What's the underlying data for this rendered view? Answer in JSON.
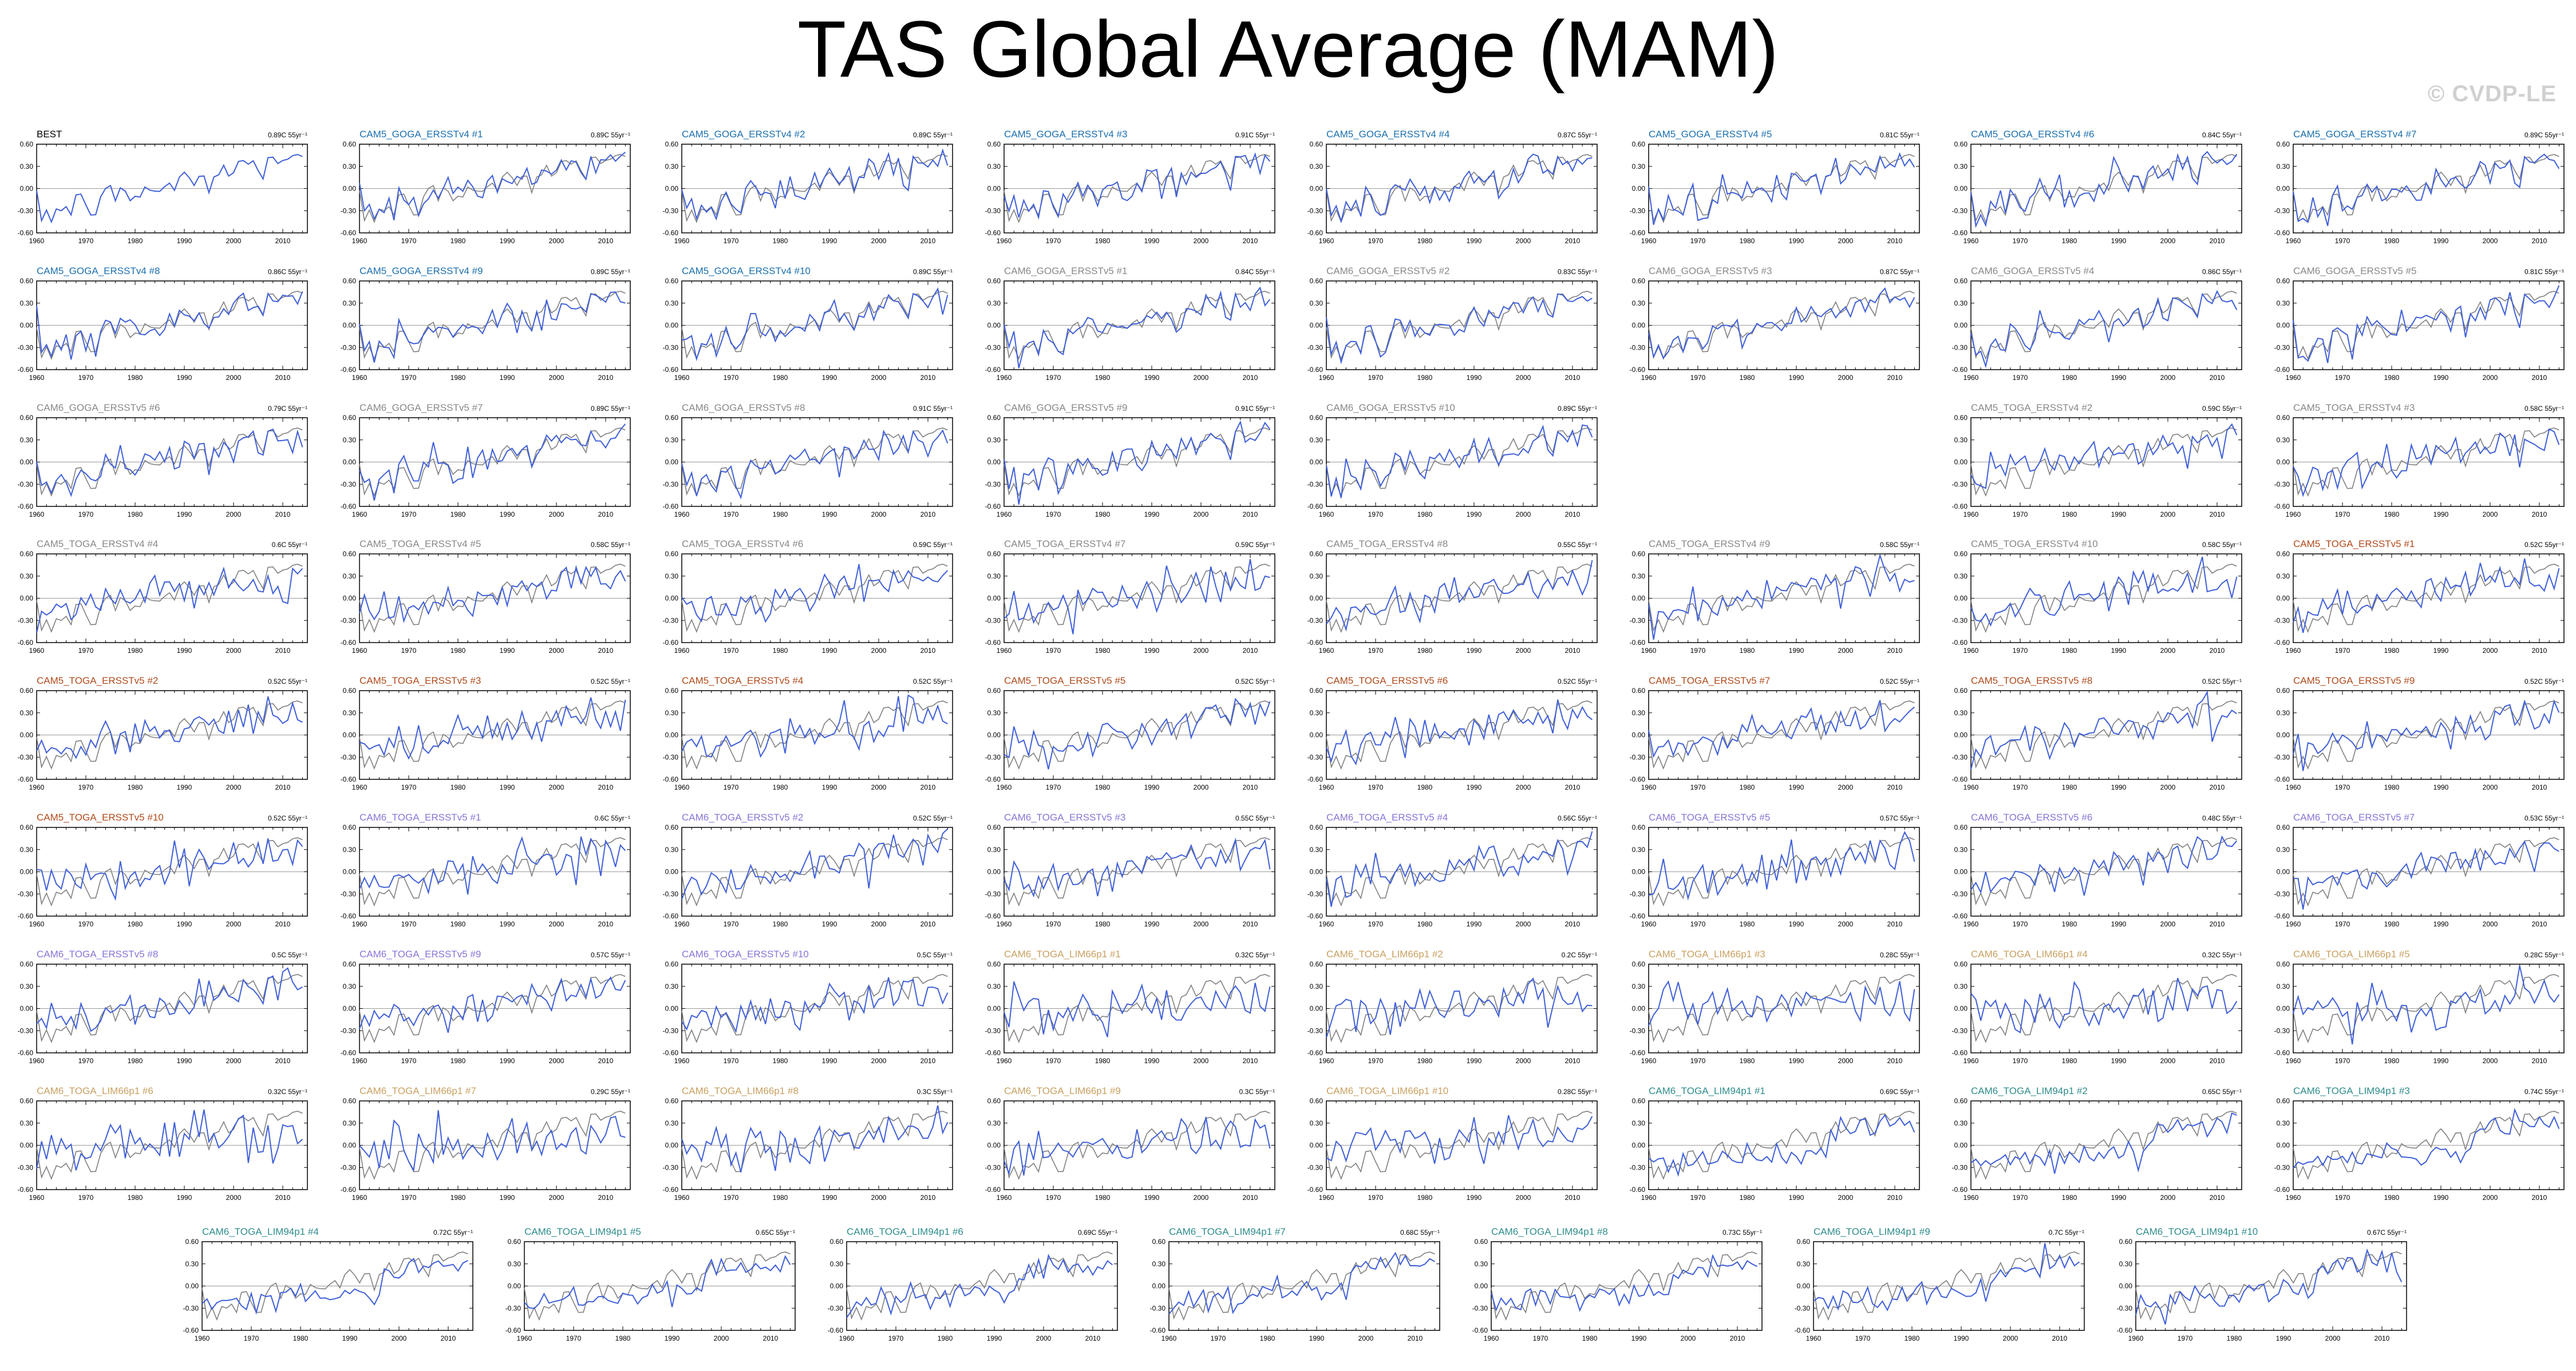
{
  "title": "TAS Global Average (MAM)",
  "watermark": "© CVDP-LE",
  "colors": {
    "obs_line": "#7f7f7f",
    "sim_line": "#3f5fd8",
    "zero_line": "#9a9a9a",
    "best": "#000000",
    "goga_v4": "#1a6fae",
    "goga_v5": "#556677",
    "cam6_goga_v5": "#888888",
    "toga_v4": "#888888",
    "cam5_toga_v5": "#b14a1a",
    "cam6_toga_v5": "#8a74d6",
    "lim66": "#c8a060",
    "lim94": "#2f8c8c"
  },
  "chart_data": {
    "type": "line",
    "layout": "small-multiples",
    "xlim": [
      1960,
      2015
    ],
    "ylim": [
      -0.6,
      0.6
    ],
    "x_ticks": [
      "1960",
      "1970",
      "1980",
      "1990",
      "2000",
      "2010"
    ],
    "y_ticks": [
      "0.60",
      "0.30",
      "0.00",
      "-0.30",
      "-0.60"
    ],
    "panels": [
      {
        "title": "BEST",
        "trend": "0.89C 55yr⁻¹",
        "color": "best",
        "type": "obs"
      },
      {
        "title": "CAM5_GOGA_ERSSTv4 #1",
        "trend": "0.89C 55yr⁻¹",
        "color": "goga_v4",
        "type": "goga"
      },
      {
        "title": "CAM5_GOGA_ERSSTv4 #2",
        "trend": "0.89C 55yr⁻¹",
        "color": "goga_v4",
        "type": "goga"
      },
      {
        "title": "CAM5_GOGA_ERSSTv4 #3",
        "trend": "0.91C 55yr⁻¹",
        "color": "goga_v4",
        "type": "goga"
      },
      {
        "title": "CAM5_GOGA_ERSSTv4 #4",
        "trend": "0.87C 55yr⁻¹",
        "color": "goga_v4",
        "type": "goga"
      },
      {
        "title": "CAM5_GOGA_ERSSTv4 #5",
        "trend": "0.81C 55yr⁻¹",
        "color": "goga_v4",
        "type": "goga"
      },
      {
        "title": "CAM5_GOGA_ERSSTv4 #6",
        "trend": "0.84C 55yr⁻¹",
        "color": "goga_v4",
        "type": "goga"
      },
      {
        "title": "CAM5_GOGA_ERSSTv4 #7",
        "trend": "0.89C 55yr⁻¹",
        "color": "goga_v4",
        "type": "goga"
      },
      {
        "title": "CAM5_GOGA_ERSSTv4 #8",
        "trend": "0.86C 55yr⁻¹",
        "color": "goga_v4",
        "type": "goga"
      },
      {
        "title": "CAM5_GOGA_ERSSTv4 #9",
        "trend": "0.89C 55yr⁻¹",
        "color": "goga_v4",
        "type": "goga"
      },
      {
        "title": "CAM5_GOGA_ERSSTv4 #10",
        "trend": "0.89C 55yr⁻¹",
        "color": "goga_v4",
        "type": "goga"
      },
      {
        "title": "CAM6_GOGA_ERSSTv5 #1",
        "trend": "0.84C 55yr⁻¹",
        "color": "cam6_goga_v5",
        "type": "goga"
      },
      {
        "title": "CAM6_GOGA_ERSSTv5 #2",
        "trend": "0.83C 55yr⁻¹",
        "color": "cam6_goga_v5",
        "type": "goga"
      },
      {
        "title": "CAM6_GOGA_ERSSTv5 #3",
        "trend": "0.87C 55yr⁻¹",
        "color": "cam6_goga_v5",
        "type": "goga"
      },
      {
        "title": "CAM6_GOGA_ERSSTv5 #4",
        "trend": "0.86C 55yr⁻¹",
        "color": "cam6_goga_v5",
        "type": "goga"
      },
      {
        "title": "CAM6_GOGA_ERSSTv5 #5",
        "trend": "0.81C 55yr⁻¹",
        "color": "cam6_goga_v5",
        "type": "goga"
      },
      {
        "title": "CAM6_GOGA_ERSSTv5 #6",
        "trend": "0.79C 55yr⁻¹",
        "color": "cam6_goga_v5",
        "type": "goga"
      },
      {
        "title": "CAM6_GOGA_ERSSTv5 #7",
        "trend": "0.89C 55yr⁻¹",
        "color": "cam6_goga_v5",
        "type": "goga"
      },
      {
        "title": "CAM6_GOGA_ERSSTv5 #8",
        "trend": "0.91C 55yr⁻¹",
        "color": "cam6_goga_v5",
        "type": "goga"
      },
      {
        "title": "CAM6_GOGA_ERSSTv5 #9",
        "trend": "0.91C 55yr⁻¹",
        "color": "cam6_goga_v5",
        "type": "goga"
      },
      {
        "title": "CAM6_GOGA_ERSSTv5 #10",
        "trend": "0.89C 55yr⁻¹",
        "color": "cam6_goga_v5",
        "type": "goga"
      },
      null,
      {
        "title": "CAM5_TOGA_ERSSTv4 #2",
        "trend": "0.59C 55yr⁻¹",
        "color": "toga_v4",
        "type": "toga"
      },
      {
        "title": "CAM5_TOGA_ERSSTv4 #3",
        "trend": "0.58C 55yr⁻¹",
        "color": "toga_v4",
        "type": "toga"
      },
      {
        "title": "CAM5_TOGA_ERSSTv4 #4",
        "trend": "0.6C 55yr⁻¹",
        "color": "toga_v4",
        "type": "toga"
      },
      {
        "title": "CAM5_TOGA_ERSSTv4 #5",
        "trend": "0.58C 55yr⁻¹",
        "color": "toga_v4",
        "type": "toga"
      },
      {
        "title": "CAM5_TOGA_ERSSTv4 #6",
        "trend": "0.59C 55yr⁻¹",
        "color": "toga_v4",
        "type": "toga"
      },
      {
        "title": "CAM5_TOGA_ERSSTv4 #7",
        "trend": "0.59C 55yr⁻¹",
        "color": "toga_v4",
        "type": "toga"
      },
      {
        "title": "CAM5_TOGA_ERSSTv4 #8",
        "trend": "0.55C 55yr⁻¹",
        "color": "toga_v4",
        "type": "toga"
      },
      {
        "title": "CAM5_TOGA_ERSSTv4 #9",
        "trend": "0.58C 55yr⁻¹",
        "color": "toga_v4",
        "type": "toga"
      },
      {
        "title": "CAM5_TOGA_ERSSTv4 #10",
        "trend": "0.58C 55yr⁻¹",
        "color": "toga_v4",
        "type": "toga"
      },
      {
        "title": "CAM5_TOGA_ERSSTv5 #1",
        "trend": "0.52C 55yr⁻¹",
        "color": "cam5_toga_v5",
        "type": "toga"
      },
      {
        "title": "CAM5_TOGA_ERSSTv5 #2",
        "trend": "0.52C 55yr⁻¹",
        "color": "cam5_toga_v5",
        "type": "toga"
      },
      {
        "title": "CAM5_TOGA_ERSSTv5 #3",
        "trend": "0.52C 55yr⁻¹",
        "color": "cam5_toga_v5",
        "type": "toga"
      },
      {
        "title": "CAM5_TOGA_ERSSTv5 #4",
        "trend": "0.52C 55yr⁻¹",
        "color": "cam5_toga_v5",
        "type": "toga"
      },
      {
        "title": "CAM5_TOGA_ERSSTv5 #5",
        "trend": "0.52C 55yr⁻¹",
        "color": "cam5_toga_v5",
        "type": "toga"
      },
      {
        "title": "CAM5_TOGA_ERSSTv5 #6",
        "trend": "0.52C 55yr⁻¹",
        "color": "cam5_toga_v5",
        "type": "toga"
      },
      {
        "title": "CAM5_TOGA_ERSSTv5 #7",
        "trend": "0.52C 55yr⁻¹",
        "color": "cam5_toga_v5",
        "type": "toga"
      },
      {
        "title": "CAM5_TOGA_ERSSTv5 #8",
        "trend": "0.52C 55yr⁻¹",
        "color": "cam5_toga_v5",
        "type": "toga"
      },
      {
        "title": "CAM5_TOGA_ERSSTv5 #9",
        "trend": "0.52C 55yr⁻¹",
        "color": "cam5_toga_v5",
        "type": "toga"
      },
      {
        "title": "CAM5_TOGA_ERSSTv5 #10",
        "trend": "0.52C 55yr⁻¹",
        "color": "cam5_toga_v5",
        "type": "toga"
      },
      {
        "title": "CAM6_TOGA_ERSSTv5 #1",
        "trend": "0.6C 55yr⁻¹",
        "color": "cam6_toga_v5",
        "type": "toga"
      },
      {
        "title": "CAM6_TOGA_ERSSTv5 #2",
        "trend": "0.52C 55yr⁻¹",
        "color": "cam6_toga_v5",
        "type": "toga"
      },
      {
        "title": "CAM6_TOGA_ERSSTv5 #3",
        "trend": "0.55C 55yr⁻¹",
        "color": "cam6_toga_v5",
        "type": "toga"
      },
      {
        "title": "CAM6_TOGA_ERSSTv5 #4",
        "trend": "0.56C 55yr⁻¹",
        "color": "cam6_toga_v5",
        "type": "toga"
      },
      {
        "title": "CAM6_TOGA_ERSSTv5 #5",
        "trend": "0.57C 55yr⁻¹",
        "color": "cam6_toga_v5",
        "type": "toga"
      },
      {
        "title": "CAM6_TOGA_ERSSTv5 #6",
        "trend": "0.48C 55yr⁻¹",
        "color": "cam6_toga_v5",
        "type": "toga"
      },
      {
        "title": "CAM6_TOGA_ERSSTv5 #7",
        "trend": "0.53C 55yr⁻¹",
        "color": "cam6_toga_v5",
        "type": "toga"
      },
      {
        "title": "CAM6_TOGA_ERSSTv5 #8",
        "trend": "0.5C 55yr⁻¹",
        "color": "cam6_toga_v5",
        "type": "toga"
      },
      {
        "title": "CAM6_TOGA_ERSSTv5 #9",
        "trend": "0.57C 55yr⁻¹",
        "color": "cam6_toga_v5",
        "type": "toga"
      },
      {
        "title": "CAM6_TOGA_ERSSTv5 #10",
        "trend": "0.5C 55yr⁻¹",
        "color": "cam6_toga_v5",
        "type": "toga"
      },
      {
        "title": "CAM6_TOGA_LIM66p1 #1",
        "trend": "0.32C 55yr⁻¹",
        "color": "lim66",
        "type": "lim66"
      },
      {
        "title": "CAM6_TOGA_LIM66p1 #2",
        "trend": "0.2C 55yr⁻¹",
        "color": "lim66",
        "type": "lim66"
      },
      {
        "title": "CAM6_TOGA_LIM66p1 #3",
        "trend": "0.28C 55yr⁻¹",
        "color": "lim66",
        "type": "lim66"
      },
      {
        "title": "CAM6_TOGA_LIM66p1 #4",
        "trend": "0.32C 55yr⁻¹",
        "color": "lim66",
        "type": "lim66"
      },
      {
        "title": "CAM6_TOGA_LIM66p1 #5",
        "trend": "0.28C 55yr⁻¹",
        "color": "lim66",
        "type": "lim66"
      },
      {
        "title": "CAM6_TOGA_LIM66p1 #6",
        "trend": "0.32C 55yr⁻¹",
        "color": "lim66",
        "type": "lim66"
      },
      {
        "title": "CAM6_TOGA_LIM66p1 #7",
        "trend": "0.29C 55yr⁻¹",
        "color": "lim66",
        "type": "lim66"
      },
      {
        "title": "CAM6_TOGA_LIM66p1 #8",
        "trend": "0.3C 55yr⁻¹",
        "color": "lim66",
        "type": "lim66"
      },
      {
        "title": "CAM6_TOGA_LIM66p1 #9",
        "trend": "0.3C 55yr⁻¹",
        "color": "lim66",
        "type": "lim66"
      },
      {
        "title": "CAM6_TOGA_LIM66p1 #10",
        "trend": "0.28C 55yr⁻¹",
        "color": "lim66",
        "type": "lim66"
      },
      {
        "title": "CAM6_TOGA_LIM94p1 #1",
        "trend": "0.69C 55yr⁻¹",
        "color": "lim94",
        "type": "lim94"
      },
      {
        "title": "CAM6_TOGA_LIM94p1 #2",
        "trend": "0.65C 55yr⁻¹",
        "color": "lim94",
        "type": "lim94"
      },
      {
        "title": "CAM6_TOGA_LIM94p1 #3",
        "trend": "0.74C 55yr⁻¹",
        "color": "lim94",
        "type": "lim94"
      },
      {
        "title": "CAM6_TOGA_LIM94p1 #4",
        "trend": "0.72C 55yr⁻¹",
        "color": "lim94",
        "type": "lim94"
      },
      {
        "title": "CAM6_TOGA_LIM94p1 #5",
        "trend": "0.65C 55yr⁻¹",
        "color": "lim94",
        "type": "lim94"
      },
      {
        "title": "CAM6_TOGA_LIM94p1 #6",
        "trend": "0.69C 55yr⁻¹",
        "color": "lim94",
        "type": "lim94"
      },
      {
        "title": "CAM6_TOGA_LIM94p1 #7",
        "trend": "0.68C 55yr⁻¹",
        "color": "lim94",
        "type": "lim94"
      },
      {
        "title": "CAM6_TOGA_LIM94p1 #8",
        "trend": "0.73C 55yr⁻¹",
        "color": "lim94",
        "type": "lim94"
      },
      {
        "title": "CAM6_TOGA_LIM94p1 #9",
        "trend": "0.7C 55yr⁻¹",
        "color": "lim94",
        "type": "lim94"
      },
      {
        "title": "CAM6_TOGA_LIM94p1 #10",
        "trend": "0.67C 55yr⁻¹",
        "color": "lim94",
        "type": "lim94"
      }
    ]
  }
}
